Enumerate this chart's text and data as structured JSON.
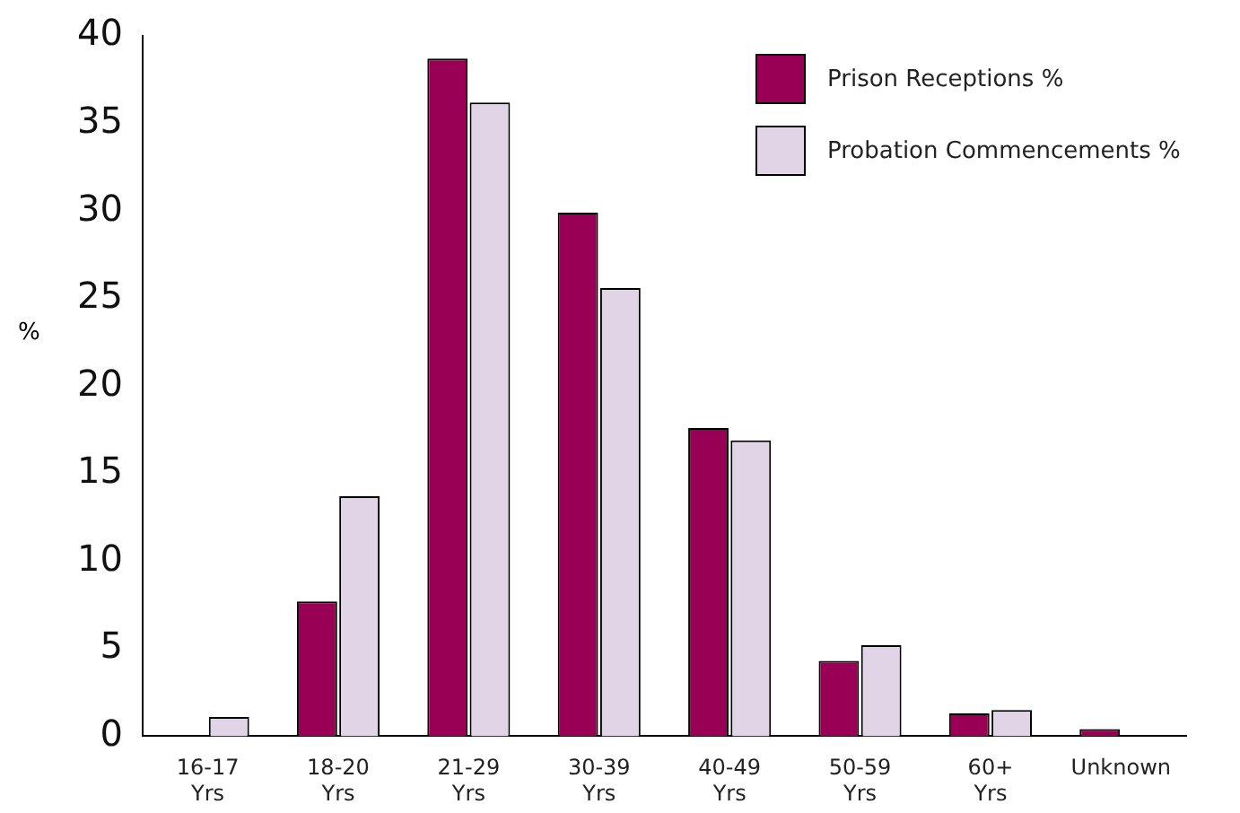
{
  "chart_data": {
    "type": "bar",
    "ylabel": "%",
    "categories": [
      "16-17 Yrs",
      "18-20 Yrs",
      "21-29 Yrs",
      "30-39 Yrs",
      "40-49 Yrs",
      "50-59 Yrs",
      "60+ Yrs",
      "Unknown"
    ],
    "series": [
      {
        "name": "Prison Receptions %",
        "color": "#990055",
        "values": [
          0,
          7.7,
          38.7,
          29.9,
          17.6,
          4.3,
          1.3,
          0.4
        ]
      },
      {
        "name": "Probation Commencements %",
        "color": "#e0d4e6",
        "values": [
          1.1,
          13.7,
          36.2,
          25.6,
          16.9,
          5.2,
          1.5,
          0
        ]
      }
    ],
    "ylim": [
      0,
      40
    ],
    "yticks": [
      0,
      5,
      10,
      15,
      20,
      25,
      30,
      35,
      40
    ],
    "grid": false,
    "legend": "top right"
  }
}
